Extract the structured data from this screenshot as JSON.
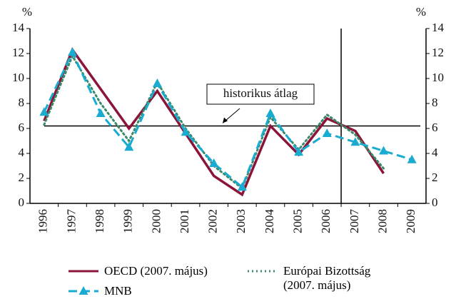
{
  "chart_data": {
    "type": "line",
    "ylabel": "%",
    "y2label": "%",
    "categories": [
      "1996",
      "1997",
      "1998",
      "1999",
      "2000",
      "2001",
      "2002",
      "2003",
      "2004",
      "2005",
      "2006",
      "2007",
      "2008",
      "2009"
    ],
    "series": [
      {
        "name": "OECD (2007. május)",
        "color": "#8b1538",
        "style": "solid",
        "values": [
          6.6,
          12.3,
          9.15,
          6.0,
          9.0,
          5.6,
          2.2,
          0.7,
          6.2,
          3.9,
          6.8,
          5.8,
          2.4,
          null
        ]
      },
      {
        "name": "Európai Bizottság (2007. május)",
        "color": "#3a8a6a",
        "style": "dotted",
        "values": [
          6.3,
          11.8,
          8.0,
          5.0,
          9.7,
          6.0,
          3.0,
          1.2,
          6.9,
          4.3,
          7.1,
          5.5,
          2.8,
          null
        ]
      },
      {
        "name": "MNB",
        "color": "#1aabd0",
        "style": "dashed",
        "marker": "triangle",
        "values": [
          7.3,
          12.1,
          7.2,
          4.5,
          9.6,
          5.7,
          3.2,
          1.3,
          7.2,
          4.1,
          5.6,
          4.9,
          4.2,
          3.5
        ]
      }
    ],
    "ylim": [
      0,
      14
    ],
    "yticks": [
      0,
      2,
      4,
      6,
      8,
      10,
      12,
      14
    ],
    "y2lim": [
      0,
      14
    ],
    "y2ticks": [
      0,
      2,
      4,
      6,
      8,
      10,
      12,
      14
    ],
    "reference_line": {
      "value": 6.2,
      "label": "historikus átlag"
    },
    "forecast_from": "2007"
  }
}
